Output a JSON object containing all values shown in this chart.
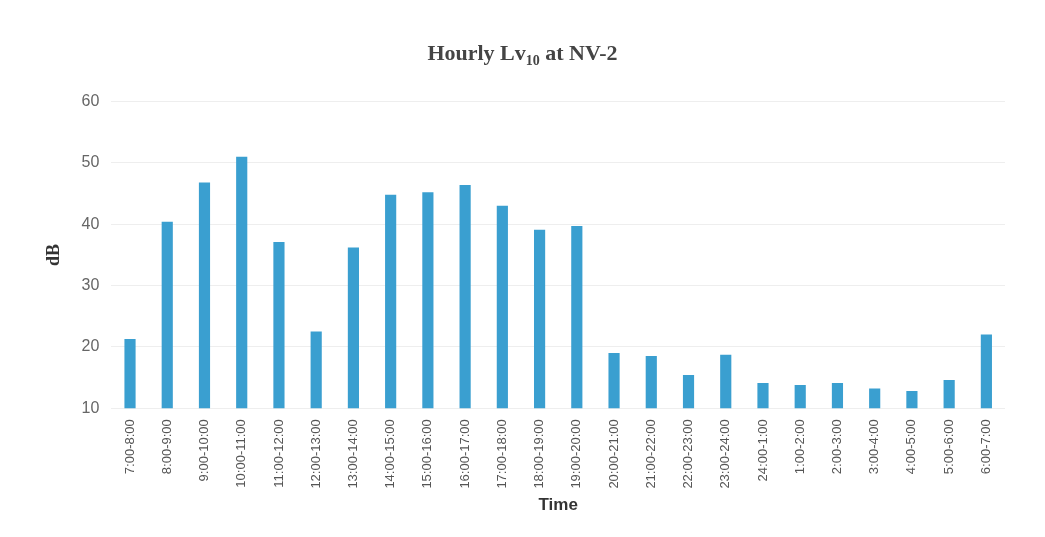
{
  "chart_data": {
    "type": "bar",
    "title": "Hourly Lv$_{10}$ at NV-2",
    "xlabel": "Time",
    "ylabel": "dB",
    "categories": [
      "7:00-8:00",
      "8:00-9:00",
      "9:00-10:00",
      "10:00-11:00",
      "11:00-12:00",
      "12:00-13:00",
      "13:00-14:00",
      "14:00-15:00",
      "15:00-16:00",
      "16:00-17:00",
      "17:00-18:00",
      "18:00-19:00",
      "19:00-20:00",
      "20:00-21:00",
      "21:00-22:00",
      "22:00-23:00",
      "23:00-24:00",
      "24:00-1:00",
      "1:00-2:00",
      "2:00-3:00",
      "3:00-4:00",
      "4:00-5:00",
      "5:00-6:00",
      "6:00-7:00"
    ],
    "values": [
      21.3,
      40.4,
      46.8,
      51,
      37.1,
      22.5,
      36.2,
      44.8,
      45.2,
      46.4,
      43,
      39.1,
      39.7,
      19,
      18.5,
      15.4,
      18.7,
      14.1,
      13.8,
      14.1,
      13.2,
      12.8,
      14.6,
      22
    ],
    "color": "#3a9fd0",
    "ylim": [
      10,
      60
    ],
    "yticks": [
      10,
      20,
      30,
      40,
      50,
      60
    ],
    "grid": "y"
  }
}
